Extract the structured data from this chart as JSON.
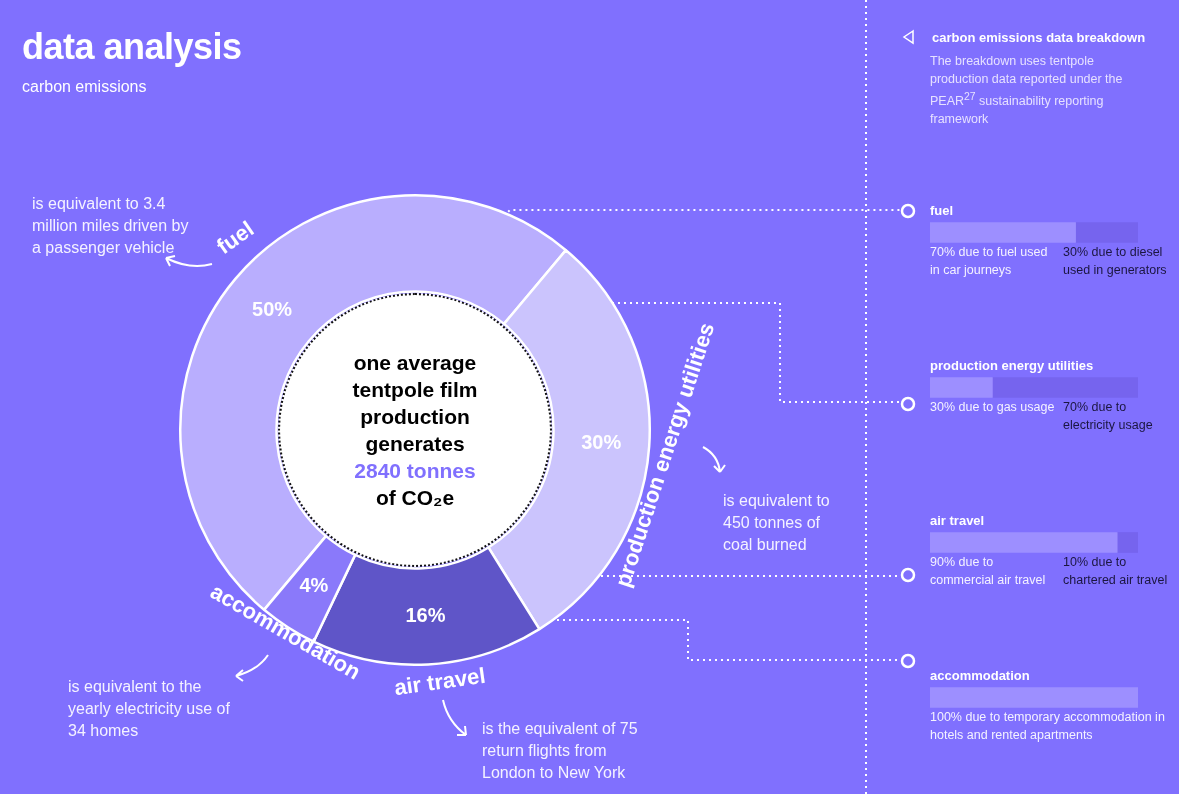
{
  "chart_data": [
    {
      "type": "donut",
      "title": "data analysis",
      "subtitle": "carbon emissions",
      "categories": [
        "fuel",
        "production energy utilities",
        "air travel",
        "accommodation"
      ],
      "values": [
        50,
        30,
        16,
        4
      ],
      "colors": [
        "#b9aefe",
        "#cbc4fd",
        "#5f55c8",
        "#8a79fa"
      ],
      "value_labels": [
        "50%",
        "30%",
        "16%",
        "4%"
      ],
      "annotations": [
        "one average tentpole film production generates",
        "2840 tonnes",
        "of CO₂e",
        "is equivalent to 3.4 million miles driven by a passenger vehicle",
        "is equivalent to 450 tonnes of coal burned",
        "is the equivalent of 75 return flights from London to New York",
        "is equivalent to the yearly electricity use of 34 homes"
      ]
    },
    {
      "type": "bar",
      "orientation": "horizontal",
      "stacked": true,
      "title": "carbon emissions data breakdown",
      "subtitle": "The breakdown uses tentpole production data reported under the PEAR$^{27}$ sustainability reporting framework",
      "categories": [
        "fuel",
        "production energy utilities",
        "air travel",
        "accommodation"
      ],
      "series": [
        {
          "color": "#9d8fff",
          "values": [
            70,
            30,
            90,
            100
          ],
          "value_labels": [
            "70%",
            "30%",
            "90%",
            "100%"
          ]
        },
        {
          "color": "#7664ee",
          "values": [
            30,
            70,
            10,
            null
          ],
          "value_labels": [
            "30%",
            "70%",
            "10%",
            null
          ]
        }
      ],
      "annotations": [
        "due to fuel used in car journeys",
        "due to diesel used in generators",
        "due to gas usage",
        "due to electricity usage",
        "due to commercial air travel",
        "due to chartered air travel",
        "due to temporary accommodation in hotels and rented apartments"
      ],
      "tick_labels": false
    }
  ]
}
